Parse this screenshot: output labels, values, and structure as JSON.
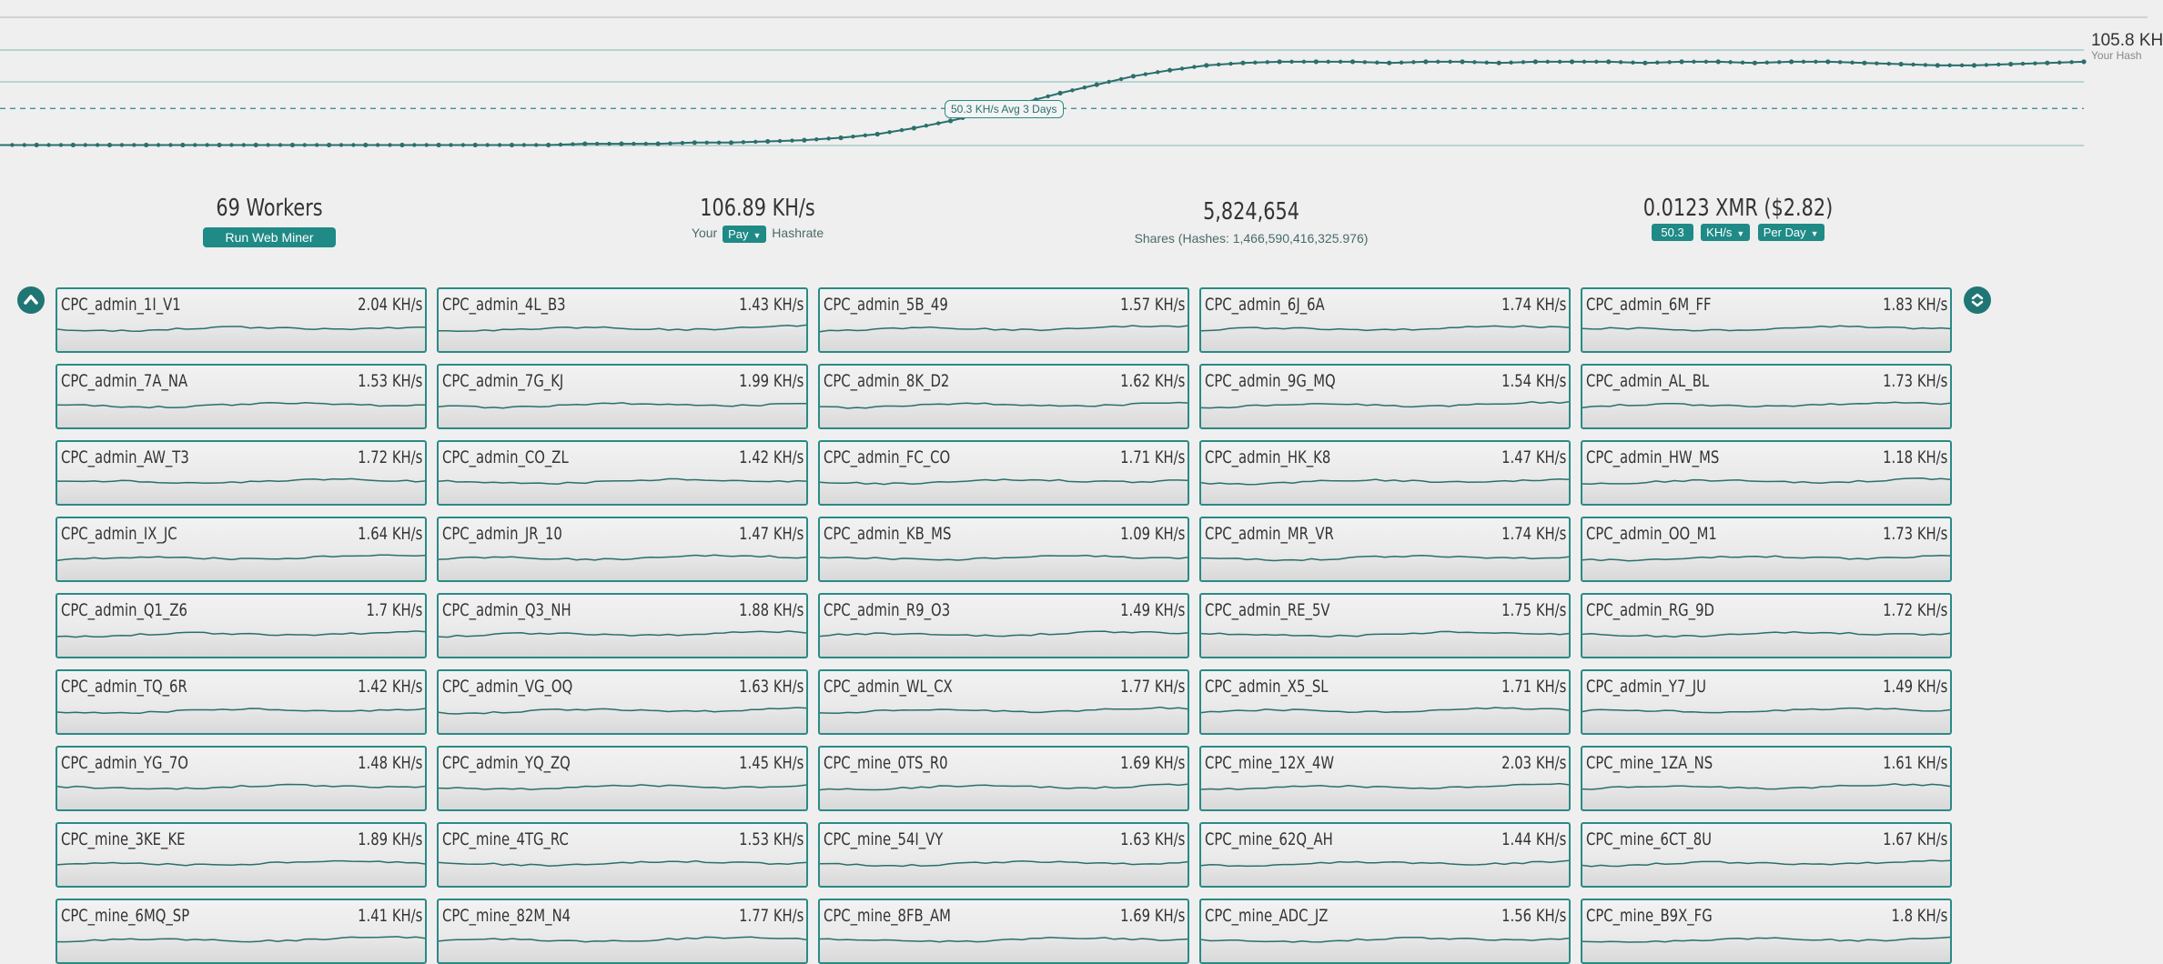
{
  "chart": {
    "avg_label": "50.3 KH/s Avg 3 Days",
    "current_value": "105.8 KH",
    "current_sub": "Your Hash"
  },
  "chart_data": {
    "type": "line",
    "series": [
      {
        "values": [
          20,
          20,
          20,
          20,
          20,
          20,
          20,
          20,
          20,
          20,
          20,
          20,
          20,
          20,
          20,
          20,
          21,
          21,
          21,
          22,
          22,
          23,
          24,
          26,
          29,
          34,
          40,
          47,
          55,
          63,
          70,
          77,
          82,
          86,
          88,
          89,
          89,
          89,
          88,
          89,
          89,
          88,
          89,
          89,
          89,
          88,
          89,
          89,
          88,
          89,
          89,
          88,
          87,
          86,
          86,
          87,
          88,
          89
        ]
      },
      {
        "values": [
          50.3
        ]
      }
    ],
    "reference_line": 50.3,
    "ylim": [
      0,
      110
    ]
  },
  "stats": {
    "workers": {
      "value": "69 Workers",
      "button": "Run Web Miner"
    },
    "hashrate": {
      "value": "106.89 KH/s",
      "prefix": "Your",
      "select": "Pay",
      "suffix": "Hashrate"
    },
    "shares": {
      "value": "5,824,654",
      "sub": "Shares (Hashes: 1,466,590,416,325.976)"
    },
    "earnings": {
      "value": "0.0123 XMR ($2.82)",
      "amount": "50.3",
      "unit": "KH/s",
      "period": "Per Day"
    }
  },
  "icons": {
    "scroll_up": "chevron-up-icon",
    "scroll_toggle": "chevrons-icon"
  },
  "colors": {
    "accent": "#1f8a86",
    "line": "#2a6f6c",
    "background": "#efefef"
  },
  "workers": [
    {
      "name": "CPC_admin_1I_V1",
      "rate": "2.04 KH/s"
    },
    {
      "name": "CPC_admin_4L_B3",
      "rate": "1.43 KH/s"
    },
    {
      "name": "CPC_admin_5B_49",
      "rate": "1.57 KH/s"
    },
    {
      "name": "CPC_admin_6J_6A",
      "rate": "1.74 KH/s"
    },
    {
      "name": "CPC_admin_6M_FF",
      "rate": "1.83 KH/s"
    },
    {
      "name": "CPC_admin_7A_NA",
      "rate": "1.53 KH/s"
    },
    {
      "name": "CPC_admin_7G_KJ",
      "rate": "1.99 KH/s"
    },
    {
      "name": "CPC_admin_8K_D2",
      "rate": "1.62 KH/s"
    },
    {
      "name": "CPC_admin_9G_MQ",
      "rate": "1.54 KH/s"
    },
    {
      "name": "CPC_admin_AL_BL",
      "rate": "1.73 KH/s"
    },
    {
      "name": "CPC_admin_AW_T3",
      "rate": "1.72 KH/s"
    },
    {
      "name": "CPC_admin_CO_ZL",
      "rate": "1.42 KH/s"
    },
    {
      "name": "CPC_admin_FC_CO",
      "rate": "1.71 KH/s"
    },
    {
      "name": "CPC_admin_HK_K8",
      "rate": "1.47 KH/s"
    },
    {
      "name": "CPC_admin_HW_MS",
      "rate": "1.18 KH/s"
    },
    {
      "name": "CPC_admin_IX_JC",
      "rate": "1.64 KH/s"
    },
    {
      "name": "CPC_admin_JR_10",
      "rate": "1.47 KH/s"
    },
    {
      "name": "CPC_admin_KB_MS",
      "rate": "1.09 KH/s"
    },
    {
      "name": "CPC_admin_MR_VR",
      "rate": "1.74 KH/s"
    },
    {
      "name": "CPC_admin_OO_M1",
      "rate": "1.73 KH/s"
    },
    {
      "name": "CPC_admin_Q1_Z6",
      "rate": "1.7 KH/s"
    },
    {
      "name": "CPC_admin_Q3_NH",
      "rate": "1.88 KH/s"
    },
    {
      "name": "CPC_admin_R9_O3",
      "rate": "1.49 KH/s"
    },
    {
      "name": "CPC_admin_RE_5V",
      "rate": "1.75 KH/s"
    },
    {
      "name": "CPC_admin_RG_9D",
      "rate": "1.72 KH/s"
    },
    {
      "name": "CPC_admin_TQ_6R",
      "rate": "1.42 KH/s"
    },
    {
      "name": "CPC_admin_VG_OQ",
      "rate": "1.63 KH/s"
    },
    {
      "name": "CPC_admin_WL_CX",
      "rate": "1.77 KH/s"
    },
    {
      "name": "CPC_admin_X5_SL",
      "rate": "1.71 KH/s"
    },
    {
      "name": "CPC_admin_Y7_JU",
      "rate": "1.49 KH/s"
    },
    {
      "name": "CPC_admin_YG_7O",
      "rate": "1.48 KH/s"
    },
    {
      "name": "CPC_admin_YQ_ZQ",
      "rate": "1.45 KH/s"
    },
    {
      "name": "CPC_mine_0TS_R0",
      "rate": "1.69 KH/s"
    },
    {
      "name": "CPC_mine_12X_4W",
      "rate": "2.03 KH/s"
    },
    {
      "name": "CPC_mine_1ZA_NS",
      "rate": "1.61 KH/s"
    },
    {
      "name": "CPC_mine_3KE_KE",
      "rate": "1.89 KH/s"
    },
    {
      "name": "CPC_mine_4TG_RC",
      "rate": "1.53 KH/s"
    },
    {
      "name": "CPC_mine_54I_VY",
      "rate": "1.63 KH/s"
    },
    {
      "name": "CPC_mine_62Q_AH",
      "rate": "1.44 KH/s"
    },
    {
      "name": "CPC_mine_6CT_8U",
      "rate": "1.67 KH/s"
    },
    {
      "name": "CPC_mine_6MQ_SP",
      "rate": "1.41 KH/s"
    },
    {
      "name": "CPC_mine_82M_N4",
      "rate": "1.77 KH/s"
    },
    {
      "name": "CPC_mine_8FB_AM",
      "rate": "1.69 KH/s"
    },
    {
      "name": "CPC_mine_ADC_JZ",
      "rate": "1.56 KH/s"
    },
    {
      "name": "CPC_mine_B9X_FG",
      "rate": "1.8 KH/s"
    }
  ]
}
